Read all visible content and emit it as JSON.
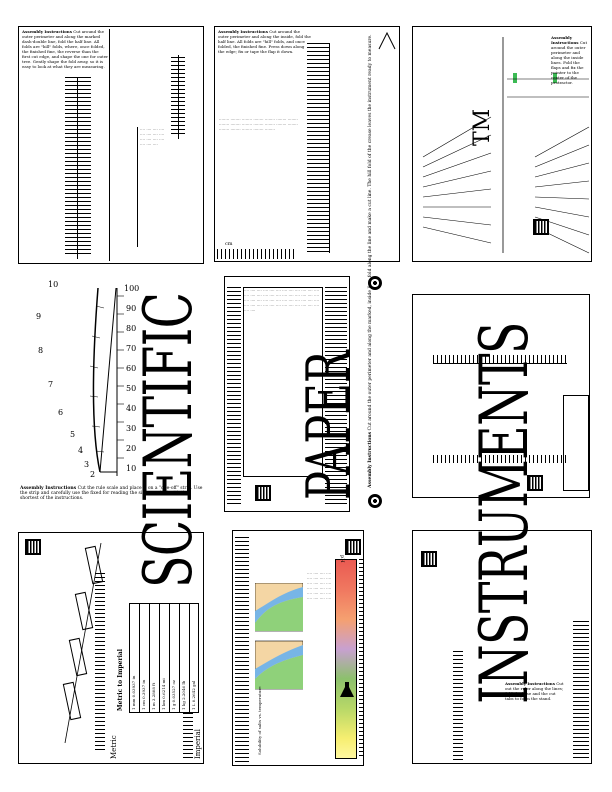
{
  "title": {
    "word1": "SCIENTIFIC",
    "word2": "PAPER",
    "word3": "INSTRUMENTS",
    "trademark": "TM"
  },
  "panels": {
    "top_left": {
      "heading": "Assembly Instructions",
      "body": "Cut around the outer perimeter and along the marked dash-double line, fold the half line. All folds are \"hill\" folds, where, once folded, the finished fine, the reverse than the first cut edge, and shape the one for outer tree. Gently shape the fold away, so it is easy to look at what they are measuring."
    },
    "arc_scale": {
      "labels": [
        "10",
        "9",
        "8",
        "7",
        "6",
        "5",
        "4",
        "3",
        "2"
      ],
      "outer_labels": [
        "100",
        "90",
        "80",
        "70",
        "60",
        "50",
        "40",
        "30",
        "20",
        "10"
      ],
      "caption_heading": "Assembly Instructions",
      "caption": "Cut the rule scale and place it on a \"one-off\" strip. Use the strip and carefully use the fixed for reading the side, marked with the shortest of the instructions."
    },
    "conversion_table": {
      "heading": "Metric to Imperial",
      "left_label": "Metric",
      "right_label": "Imperial",
      "rows": [
        [
          "1 mm",
          "0.03937 in"
        ],
        [
          "1 cm",
          "0.3937 in"
        ],
        [
          "1 m",
          "3.2808 ft"
        ],
        [
          "1 km",
          "0.6214 mi"
        ],
        [
          "1 g",
          "0.03527 oz"
        ],
        [
          "1 kg",
          "2.2046 lb"
        ],
        [
          "1 L",
          "0.2642 gal"
        ]
      ]
    },
    "center_top": {
      "heading": "Assembly Instructions",
      "body": "Cut around the outer perimeter and along the inside, fold the half line. All folds are \"hill\" folds, and once folded, the finished fine. Press down along the edge; fix or tape the flap it down.",
      "axis_label": "cm"
    },
    "center_mid": {
      "heading": "Assembly Instructions",
      "body": "Cut around the outer perimeter and along the marked, inside line, fold along the line and make a cut line. The hill fold of the crease leaves the instrument ready to measure."
    },
    "center_bottom": {
      "axis_label": "pH",
      "caption": "Solubility of salts vs. temperature"
    },
    "right_top": {
      "heading": "Assembly Instructions",
      "body": "Cut around the outer perimeter and along the inside lines. Fold the flaps and fix the pointer to the center of the protractor."
    },
    "right_bottom": {
      "heading": "Assembly Instructions",
      "body": "Cut out the ruler along the lines; fold the base and the cut tabs to form the stand."
    }
  }
}
